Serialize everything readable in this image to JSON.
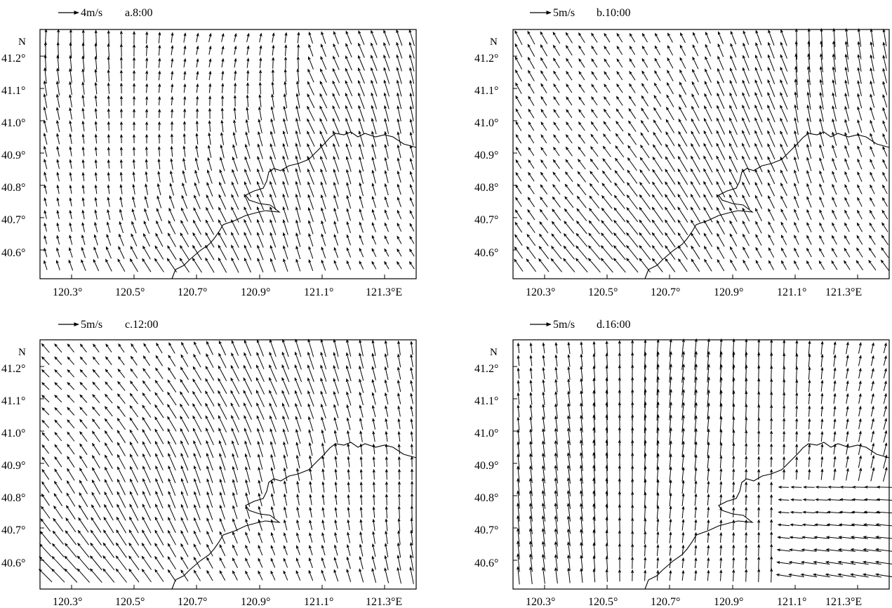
{
  "figure": {
    "ref_arrow_color": "#000000",
    "line_color": "#000000",
    "background": "#ffffff"
  },
  "chart_data": [
    {
      "type": "vector-field",
      "panel_label": "a.8:00",
      "ref_vector": "4m/s",
      "ylabel": "N",
      "x_ticks": [
        "120.3°",
        "120.5°",
        "120.7°",
        "120.9°",
        "121.1°",
        "121.3°E"
      ],
      "y_ticks": [
        "40.6°",
        "40.7°",
        "40.8°",
        "40.9°",
        "41.0°",
        "41.1°",
        "41.2°"
      ],
      "xlim": [
        120.21,
        121.41
      ],
      "ylim": [
        40.52,
        41.28
      ],
      "wind_pattern": "south-east flow over the sea turning to southerly/south-westerly over land"
    },
    {
      "type": "vector-field",
      "panel_label": "b.10:00",
      "ref_vector": "5m/s",
      "ylabel": "N",
      "x_ticks": [
        "120.3°",
        "120.5°",
        "120.7°",
        "120.9°",
        "121.1°",
        "121.3°E"
      ],
      "y_ticks": [
        "40.6°",
        "40.7°",
        "40.8°",
        "40.9°",
        "41.0°",
        "41.1°",
        "41.2°"
      ],
      "xlim": [
        120.21,
        121.41
      ],
      "ylim": [
        40.52,
        41.28
      ],
      "wind_pattern": "uniform south-easterly flow, southerly along the north-east coast"
    },
    {
      "type": "vector-field",
      "panel_label": "c.12:00",
      "ref_vector": "5m/s",
      "ylabel": "N",
      "x_ticks": [
        "120.3°",
        "120.5°",
        "120.7°",
        "120.9°",
        "121.1°",
        "121.3°E"
      ],
      "y_ticks": [
        "40.6°",
        "40.7°",
        "40.8°",
        "40.9°",
        "41.0°",
        "41.1°",
        "41.2°"
      ],
      "xlim": [
        120.21,
        121.41
      ],
      "ylim": [
        40.52,
        41.28
      ],
      "wind_pattern": "strong south-easterly flow in the west, southerly in the east"
    },
    {
      "type": "vector-field",
      "panel_label": "d.16:00",
      "ref_vector": "5m/s",
      "ylabel": "N",
      "x_ticks": [
        "120.3°",
        "120.5°",
        "120.7°",
        "120.9°",
        "121.1°",
        "121.3°E"
      ],
      "y_ticks": [
        "40.6°",
        "40.7°",
        "40.8°",
        "40.9°",
        "41.0°",
        "41.1°",
        "41.2°"
      ],
      "xlim": [
        120.21,
        121.41
      ],
      "ylim": [
        40.52,
        41.28
      ],
      "wind_pattern": "strong southerly flow in the west, easterly-to-north-easterly flow in the south-east sea"
    }
  ]
}
